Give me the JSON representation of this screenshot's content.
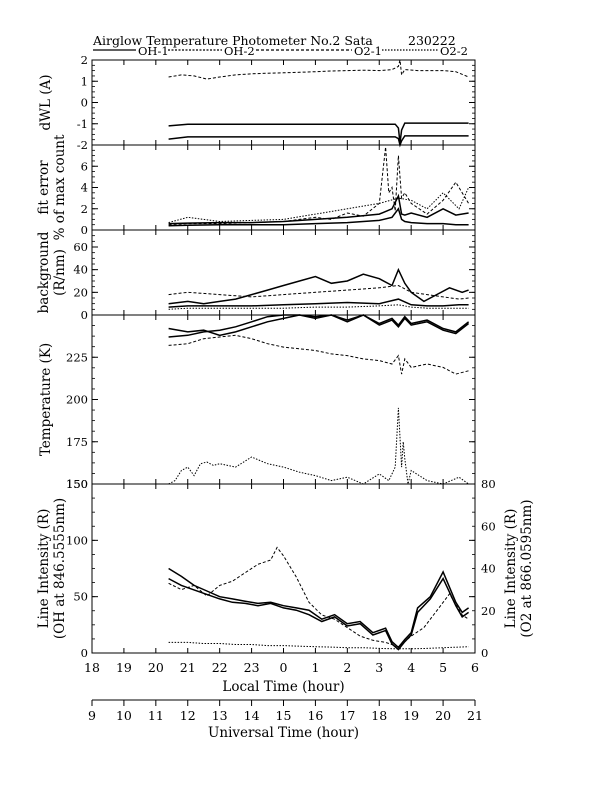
{
  "header": {
    "title": "Airglow Temperature Photometer No.2  Sata",
    "date_code": "230222"
  },
  "legend": [
    {
      "name": "OH-1",
      "style": "solid"
    },
    {
      "name": "OH-2",
      "style": "dense-dashed"
    },
    {
      "name": "O2-1",
      "style": "dashed"
    },
    {
      "name": "O2-2",
      "style": "short-dashed"
    }
  ],
  "chart_data": [
    {
      "type": "line",
      "panel": "dwl",
      "ylabel": "dWL (A)",
      "xlim": [
        18,
        30
      ],
      "ylim": [
        -2,
        2
      ],
      "yticks": [
        "-2",
        "-1",
        "0",
        "1",
        "2"
      ],
      "grid": false,
      "series": [
        {
          "name": "OH-1",
          "style": "solid",
          "x": [
            20.4,
            21,
            22,
            23,
            24,
            25,
            26,
            27,
            27.5,
            27.6,
            27.65,
            27.7,
            27.8,
            28,
            29,
            29.8
          ],
          "y": [
            -1.1,
            -1.02,
            -1.02,
            -1.02,
            -1.02,
            -1.02,
            -1.02,
            -1.02,
            -1.02,
            -1.2,
            -1.9,
            -1.3,
            -0.97,
            -0.97,
            -0.97,
            -0.97
          ]
        },
        {
          "name": "OH-2",
          "style": "solid",
          "x": [
            20.4,
            21,
            22,
            23,
            24,
            25,
            26,
            27,
            27.5,
            27.6,
            27.65,
            27.7,
            27.8,
            28,
            29,
            29.8
          ],
          "y": [
            -1.72,
            -1.62,
            -1.62,
            -1.62,
            -1.62,
            -1.62,
            -1.62,
            -1.62,
            -1.62,
            -1.7,
            -2.0,
            -1.8,
            -1.57,
            -1.57,
            -1.57,
            -1.57
          ]
        },
        {
          "name": "O2-1",
          "style": "dashed",
          "x": [
            20.4,
            20.8,
            21.2,
            21.6,
            22,
            22.5,
            23,
            23.5,
            24,
            24.5,
            25,
            25.5,
            26,
            26.5,
            27,
            27.4,
            27.6,
            27.65,
            27.7,
            27.8,
            28.2,
            28.6,
            29,
            29.4,
            29.8
          ],
          "y": [
            1.2,
            1.3,
            1.25,
            1.1,
            1.2,
            1.3,
            1.35,
            1.38,
            1.4,
            1.42,
            1.45,
            1.48,
            1.5,
            1.52,
            1.5,
            1.55,
            1.7,
            2.1,
            1.3,
            1.55,
            1.5,
            1.5,
            1.5,
            1.45,
            1.2
          ]
        }
      ]
    },
    {
      "type": "line",
      "panel": "fit-error",
      "ylabel": [
        "fit error",
        "% of max count"
      ],
      "xlim": [
        18,
        30
      ],
      "ylim": [
        0,
        8
      ],
      "yticks": [
        "0",
        "2",
        "4",
        "6"
      ],
      "grid": false,
      "series": [
        {
          "name": "OH-1",
          "style": "solid",
          "x": [
            20.4,
            21,
            22,
            23,
            24,
            25,
            26,
            27,
            27.4,
            27.6,
            27.7,
            27.8,
            28,
            28.5,
            29,
            29.4,
            29.8
          ],
          "y": [
            0.4,
            0.45,
            0.5,
            0.5,
            0.5,
            0.6,
            0.7,
            0.9,
            1.2,
            2.0,
            1.0,
            0.8,
            0.7,
            0.6,
            0.6,
            0.5,
            0.5
          ]
        },
        {
          "name": "OH-2",
          "style": "solid",
          "x": [
            20.4,
            21,
            22,
            23,
            24,
            25,
            26,
            27,
            27.4,
            27.6,
            27.7,
            27.8,
            28,
            28.5,
            29,
            29.4,
            29.8
          ],
          "y": [
            0.6,
            0.65,
            0.7,
            0.7,
            0.8,
            1.0,
            1.2,
            1.5,
            2.0,
            3.2,
            1.5,
            1.4,
            1.6,
            1.2,
            2.0,
            1.4,
            1.6
          ]
        },
        {
          "name": "O2-1",
          "style": "dashed",
          "x": [
            20.4,
            21,
            22,
            23,
            24,
            25,
            25.5,
            26,
            26.5,
            27,
            27.2,
            27.3,
            27.4,
            27.5,
            27.6,
            27.7,
            27.8,
            28,
            28.5,
            29,
            29.4,
            29.8
          ],
          "y": [
            0.5,
            0.6,
            0.6,
            0.7,
            0.8,
            1.2,
            1.0,
            1.6,
            1.3,
            2.5,
            7.8,
            3.5,
            4.0,
            1.8,
            7.0,
            3.0,
            3.5,
            2.5,
            1.5,
            2.8,
            4.5,
            2.5
          ]
        },
        {
          "name": "O2-2",
          "style": "short-dashed",
          "x": [
            20.4,
            21,
            22,
            23,
            24,
            25,
            26,
            27,
            27.6,
            28,
            28.5,
            29,
            29.5,
            29.8
          ],
          "y": [
            0.7,
            1.2,
            0.8,
            0.9,
            1.0,
            1.5,
            2.0,
            2.5,
            3.0,
            2.8,
            2.0,
            3.5,
            2.0,
            4.0
          ]
        }
      ]
    },
    {
      "type": "line",
      "panel": "background",
      "ylabel": [
        "background",
        "(R/nm)"
      ],
      "xlim": [
        18,
        30
      ],
      "ylim": [
        0,
        75
      ],
      "yticks": [
        "0",
        "20",
        "40",
        "60"
      ],
      "grid": false,
      "series": [
        {
          "name": "OH-1",
          "style": "solid",
          "x": [
            20.4,
            21,
            21.5,
            22,
            22.5,
            23,
            23.5,
            24,
            24.5,
            25,
            25.5,
            26,
            26.5,
            27,
            27.4,
            27.6,
            27.8,
            28,
            28.4,
            28.8,
            29.2,
            29.6,
            29.8
          ],
          "y": [
            10,
            12,
            10,
            12,
            14,
            18,
            22,
            26,
            30,
            34,
            28,
            30,
            36,
            32,
            26,
            40,
            28,
            20,
            12,
            18,
            24,
            20,
            22
          ]
        },
        {
          "name": "OH-2",
          "style": "solid",
          "x": [
            20.4,
            21,
            22,
            23,
            24,
            25,
            26,
            27,
            27.6,
            28,
            28.5,
            29,
            29.5,
            29.8
          ],
          "y": [
            7,
            8,
            8,
            8,
            9,
            10,
            11,
            10,
            14,
            9,
            8,
            8,
            9,
            9
          ]
        },
        {
          "name": "O2-1",
          "style": "dashed",
          "x": [
            20.4,
            21,
            22,
            23,
            24,
            25,
            26,
            27,
            27.6,
            28,
            28.5,
            29,
            29.5,
            29.8
          ],
          "y": [
            18,
            20,
            18,
            16,
            18,
            20,
            22,
            24,
            26,
            20,
            18,
            16,
            14,
            15
          ]
        },
        {
          "name": "O2-2",
          "style": "short-dashed",
          "x": [
            20.4,
            21,
            22,
            23,
            24,
            25,
            26,
            27,
            27.6,
            28,
            28.5,
            29,
            29.5,
            29.8
          ],
          "y": [
            5,
            6,
            6,
            6,
            6,
            7,
            7,
            8,
            9,
            7,
            6,
            6,
            6,
            6
          ]
        }
      ]
    },
    {
      "type": "line",
      "panel": "temperature",
      "ylabel": "Temperature (K)",
      "xlim": [
        18,
        30
      ],
      "ylim": [
        150,
        250
      ],
      "yticks": [
        "150",
        "175",
        "200",
        "225"
      ],
      "grid": false,
      "series": [
        {
          "name": "OH-1",
          "style": "solid",
          "x": [
            20.4,
            21,
            21.5,
            22,
            22.5,
            23,
            23.5,
            24,
            24.5,
            25,
            25.5,
            26,
            26.5,
            27,
            27.4,
            27.6,
            27.8,
            28,
            28.5,
            29,
            29.4,
            29.8
          ],
          "y": [
            242,
            240,
            241,
            238,
            240,
            243,
            246,
            248,
            250,
            249,
            250,
            247,
            251,
            245,
            248,
            244,
            249,
            245,
            247,
            242,
            240,
            246
          ]
        },
        {
          "name": "OH-2",
          "style": "solid",
          "x": [
            20.4,
            21,
            21.5,
            22,
            22.5,
            23,
            23.5,
            24,
            24.5,
            25,
            25.5,
            26,
            26.5,
            27,
            27.4,
            27.6,
            27.8,
            28,
            28.5,
            29,
            29.4,
            29.8
          ],
          "y": [
            237,
            238,
            240,
            241,
            243,
            246,
            249,
            250,
            251,
            248,
            250,
            246,
            250,
            244,
            247,
            243,
            248,
            244,
            246,
            241,
            239,
            245
          ]
        },
        {
          "name": "O2-1",
          "style": "dashed",
          "x": [
            20.4,
            21,
            21.5,
            22,
            22.5,
            23,
            23.5,
            24,
            24.5,
            25,
            25.5,
            26,
            26.5,
            27,
            27.4,
            27.6,
            27.7,
            27.8,
            28,
            28.5,
            29,
            29.4,
            29.8
          ],
          "y": [
            232,
            233,
            236,
            237,
            238,
            236,
            233,
            231,
            230,
            229,
            227,
            226,
            224,
            223,
            221,
            226,
            215,
            224,
            219,
            221,
            219,
            215,
            217
          ]
        },
        {
          "name": "O2-2",
          "style": "short-dashed",
          "x": [
            20.4,
            20.6,
            20.8,
            21,
            21.2,
            21.4,
            21.6,
            21.8,
            22,
            22.5,
            23,
            23.5,
            24,
            24.5,
            25,
            25.5,
            26,
            26.5,
            27,
            27.3,
            27.5,
            27.6,
            27.7,
            27.75,
            27.8,
            27.9,
            28,
            28.5,
            29,
            29.5,
            29.8
          ],
          "y": [
            150,
            152,
            158,
            160,
            155,
            162,
            163,
            161,
            162,
            160,
            166,
            162,
            160,
            157,
            155,
            152,
            154,
            150,
            156,
            152,
            160,
            195,
            160,
            175,
            165,
            150,
            158,
            152,
            148,
            154,
            150
          ]
        }
      ]
    },
    {
      "type": "line",
      "panel": "line-intensity",
      "ylabel": [
        "Line Intensity (R)",
        "(OH at 846.5555nm)"
      ],
      "ylabel_right": [
        "Line Intensity (R)",
        "(O2 at 866.0595nm)"
      ],
      "xlabel": "Local Time (hour)",
      "xlabel_secondary": "Universal Time (hour)",
      "xlim": [
        18,
        30
      ],
      "ylim": [
        0,
        150
      ],
      "ylim_right": [
        0,
        80
      ],
      "yticks": [
        "0",
        "50",
        "100",
        "150"
      ],
      "yticks_right": [
        "0",
        "20",
        "40",
        "60",
        "80"
      ],
      "xticks_local": [
        "18",
        "19",
        "20",
        "21",
        "22",
        "23",
        "0",
        "1",
        "2",
        "3",
        "4",
        "5",
        "6"
      ],
      "xticks_ut": [
        "9",
        "10",
        "11",
        "12",
        "13",
        "14",
        "15",
        "16",
        "17",
        "18",
        "19",
        "20",
        "21"
      ],
      "grid": false,
      "series": [
        {
          "name": "OH-1",
          "style": "solid",
          "x": [
            20.4,
            20.8,
            21.2,
            21.6,
            22,
            22.4,
            22.8,
            23.2,
            23.6,
            24,
            24.4,
            24.8,
            25.2,
            25.6,
            26,
            26.4,
            26.8,
            27.2,
            27.4,
            27.6,
            27.8,
            28.0,
            28.2,
            28.6,
            29.0,
            29.4,
            29.6,
            29.8
          ],
          "y": [
            75,
            68,
            60,
            55,
            50,
            48,
            46,
            44,
            45,
            42,
            40,
            38,
            30,
            34,
            26,
            28,
            18,
            22,
            10,
            5,
            12,
            18,
            40,
            50,
            72,
            45,
            36,
            40
          ]
        },
        {
          "name": "OH-2",
          "style": "solid",
          "x": [
            20.4,
            20.8,
            21.2,
            21.6,
            22,
            22.4,
            22.8,
            23.2,
            23.6,
            24,
            24.4,
            24.8,
            25.2,
            25.6,
            26,
            26.4,
            26.8,
            27.2,
            27.4,
            27.6,
            27.8,
            28.0,
            28.2,
            28.6,
            29.0,
            29.4,
            29.6,
            29.8
          ],
          "y": [
            66,
            60,
            56,
            52,
            48,
            45,
            44,
            42,
            44,
            40,
            38,
            34,
            28,
            32,
            24,
            26,
            16,
            20,
            8,
            3,
            10,
            16,
            36,
            48,
            66,
            42,
            32,
            36
          ]
        },
        {
          "name": "O2-1",
          "style": "dashed",
          "x": [
            20.4,
            20.8,
            21.2,
            21.6,
            22,
            22.4,
            22.8,
            23.2,
            23.6,
            23.8,
            24,
            24.4,
            24.8,
            25.2,
            25.6,
            26,
            26.4,
            26.8,
            27.2,
            27.6,
            28.0,
            28.4,
            28.8,
            29.2,
            29.6,
            29.8
          ],
          "y": [
            33,
            30,
            32,
            27,
            32,
            34,
            38,
            42,
            44,
            50,
            46,
            36,
            24,
            18,
            16,
            12,
            8,
            6,
            5,
            3,
            8,
            12,
            20,
            28,
            18,
            16
          ]
        },
        {
          "name": "O2-2",
          "style": "short-dashed",
          "x": [
            20.4,
            21,
            21.5,
            22,
            22.5,
            23,
            23.5,
            24,
            24.5,
            25,
            25.5,
            26,
            26.5,
            27,
            27.5,
            28,
            28.5,
            29,
            29.5,
            29.8
          ],
          "y": [
            5,
            5,
            4.5,
            4.5,
            4,
            4,
            3.5,
            3.5,
            3.2,
            3,
            2.8,
            2.5,
            2.5,
            2.2,
            2,
            2,
            2.2,
            2.5,
            2.8,
            3
          ]
        }
      ]
    }
  ]
}
